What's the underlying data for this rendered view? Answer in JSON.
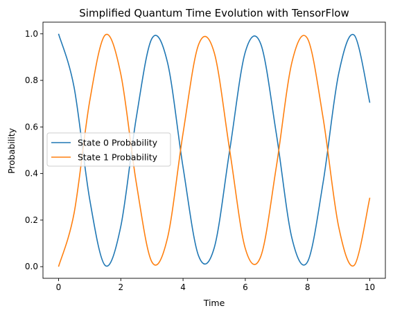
{
  "chart_data": {
    "type": "line",
    "title": "Simplified Quantum Time Evolution with TensorFlow",
    "xlabel": "Time",
    "ylabel": "Probability",
    "xlim": [
      -0.5,
      10.5
    ],
    "ylim": [
      -0.05,
      1.05
    ],
    "xticks": [
      0,
      2,
      4,
      6,
      8,
      10
    ],
    "yticks": [
      0.0,
      0.2,
      0.4,
      0.6,
      0.8,
      1.0
    ],
    "xtick_labels": [
      "0",
      "2",
      "4",
      "6",
      "8",
      "10"
    ],
    "ytick_labels": [
      "0.0",
      "0.2",
      "0.4",
      "0.6",
      "0.8",
      "1.0"
    ],
    "grid": false,
    "legend_placement": "center-left",
    "series": [
      {
        "name": "State 0 Probability",
        "color": "#1f77b4",
        "x": [
          0,
          0.5,
          1,
          1.5,
          2,
          2.5,
          3,
          3.5,
          4,
          4.5,
          5,
          5.5,
          6,
          6.5,
          7,
          7.5,
          8,
          8.5,
          9,
          9.5,
          10
        ],
        "y": [
          1.0,
          0.77,
          0.29,
          0.005,
          0.173,
          0.642,
          0.98,
          0.877,
          0.427,
          0.046,
          0.08,
          0.501,
          0.922,
          0.955,
          0.568,
          0.121,
          0.021,
          0.362,
          0.829,
          0.994,
          0.704
        ]
      },
      {
        "name": "State 1 Probability",
        "color": "#ff7f0e",
        "x": [
          0,
          0.5,
          1,
          1.5,
          2,
          2.5,
          3,
          3.5,
          4,
          4.5,
          5,
          5.5,
          6,
          6.5,
          7,
          7.5,
          8,
          8.5,
          9,
          9.5,
          10
        ],
        "y": [
          0.0,
          0.23,
          0.71,
          0.995,
          0.827,
          0.358,
          0.02,
          0.123,
          0.573,
          0.954,
          0.92,
          0.499,
          0.078,
          0.045,
          0.432,
          0.879,
          0.979,
          0.638,
          0.171,
          0.006,
          0.296
        ]
      }
    ]
  }
}
